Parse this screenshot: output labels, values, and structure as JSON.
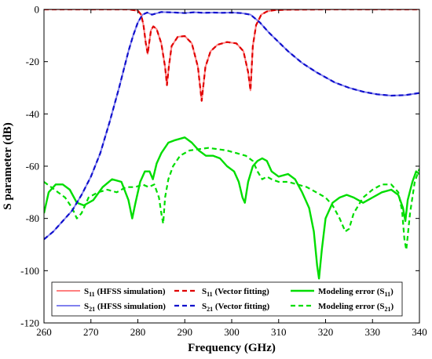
{
  "chart_data": {
    "type": "line",
    "xlabel": "Frequency (GHz)",
    "ylabel": "S parameter (dB)",
    "xlim": [
      260,
      340
    ],
    "ylim": [
      -120,
      0
    ],
    "xticks": [
      260,
      270,
      280,
      290,
      300,
      310,
      320,
      330,
      340
    ],
    "yticks": [
      0,
      -20,
      -40,
      -60,
      -80,
      -100,
      -120
    ],
    "grid": false,
    "legend_position": "bottom-center",
    "series": [
      {
        "key": "s11_hfss",
        "legend_main": "S",
        "legend_sub": "11",
        "legend_tail": " (HFSS simulation)",
        "color": "#ff7f7f",
        "dash": "solid",
        "width": 2,
        "x": [
          260,
          270,
          278,
          280,
          280.7,
          281.2,
          281.7,
          282.1,
          282.4,
          282.8,
          283.3,
          284,
          285,
          285.8,
          286.2,
          286.6,
          287.2,
          288.5,
          290,
          291.5,
          292.8,
          293.6,
          294.4,
          295.5,
          297,
          299,
          301,
          302.5,
          303.5,
          304,
          304.5,
          305.2,
          306.3,
          307.5,
          309,
          312,
          320,
          330,
          340
        ],
        "y": [
          0,
          0,
          0,
          -0.5,
          -2,
          -6,
          -13,
          -17,
          -13,
          -8,
          -6.5,
          -7.5,
          -13,
          -22,
          -29,
          -22,
          -14,
          -10.5,
          -10.2,
          -13,
          -22,
          -35,
          -22,
          -16,
          -13.5,
          -12.5,
          -13,
          -16,
          -24,
          -31,
          -14,
          -6,
          -2,
          -0.8,
          -0.3,
          -0.1,
          0,
          0,
          0
        ]
      },
      {
        "key": "s11_vf",
        "legend_main": "S",
        "legend_sub": "11",
        "legend_tail": " (Vector fitting)",
        "color": "#e00000",
        "dash": "dashed",
        "width": 2.2,
        "x": [
          260,
          270,
          278,
          280,
          280.7,
          281.2,
          281.7,
          282.1,
          282.4,
          282.8,
          283.3,
          284,
          285,
          285.8,
          286.2,
          286.6,
          287.2,
          288.5,
          290,
          291.5,
          292.8,
          293.6,
          294.4,
          295.5,
          297,
          299,
          301,
          302.5,
          303.5,
          304,
          304.5,
          305.2,
          306.3,
          307.5,
          309,
          312,
          320,
          330,
          340
        ],
        "y": [
          0,
          0,
          0,
          -0.5,
          -2,
          -6,
          -13,
          -17,
          -13,
          -8,
          -6.5,
          -7.5,
          -13,
          -22,
          -29,
          -22,
          -14,
          -10.5,
          -10.2,
          -13,
          -22,
          -35,
          -22,
          -16,
          -13.5,
          -12.5,
          -13,
          -16,
          -24,
          -31,
          -14,
          -6,
          -2,
          -0.8,
          -0.3,
          -0.1,
          0,
          0,
          0
        ]
      },
      {
        "key": "s21_hfss",
        "legend_main": "S",
        "legend_sub": "21",
        "legend_tail": " (HFSS simulation)",
        "color": "#8080ee",
        "dash": "solid",
        "width": 2,
        "x": [
          260,
          262,
          264,
          266,
          268,
          270,
          272,
          274,
          276,
          278,
          279,
          280,
          281,
          282,
          283,
          285,
          288,
          290,
          292,
          294,
          296,
          298,
          300,
          302,
          304,
          305,
          306,
          307,
          308,
          310,
          312,
          315,
          318,
          320,
          322,
          325,
          328,
          331,
          334,
          337,
          340
        ],
        "y": [
          -88,
          -85,
          -81,
          -77,
          -71,
          -64,
          -55,
          -43,
          -30,
          -16,
          -10,
          -5,
          -2,
          -1.2,
          -2,
          -1,
          -1.2,
          -1.4,
          -1.1,
          -1.3,
          -1.2,
          -1.3,
          -1.2,
          -1.4,
          -2,
          -3.5,
          -5,
          -7,
          -9,
          -12.5,
          -16,
          -20.5,
          -24,
          -26,
          -28,
          -30,
          -31.5,
          -32.5,
          -33,
          -32.8,
          -32
        ]
      },
      {
        "key": "s21_vf",
        "legend_main": "S",
        "legend_sub": "21",
        "legend_tail": " (Vector fitting)",
        "color": "#1010cc",
        "dash": "dashed",
        "width": 2.2,
        "x": [
          260,
          262,
          264,
          266,
          268,
          270,
          272,
          274,
          276,
          278,
          279,
          280,
          281,
          282,
          283,
          285,
          288,
          290,
          292,
          294,
          296,
          298,
          300,
          302,
          304,
          305,
          306,
          307,
          308,
          310,
          312,
          315,
          318,
          320,
          322,
          325,
          328,
          331,
          334,
          337,
          340
        ],
        "y": [
          -88,
          -85,
          -81,
          -77,
          -71,
          -64,
          -55,
          -43,
          -30,
          -16,
          -10,
          -5,
          -2,
          -1.2,
          -2,
          -1,
          -1.2,
          -1.4,
          -1.1,
          -1.3,
          -1.2,
          -1.3,
          -1.2,
          -1.4,
          -2,
          -3.5,
          -5,
          -7,
          -9,
          -12.5,
          -16,
          -20.5,
          -24,
          -26,
          -28,
          -30,
          -31.5,
          -32.5,
          -33,
          -32.8,
          -32
        ]
      },
      {
        "key": "err_s11",
        "legend_main": "Modeling error (S",
        "legend_sub": "11",
        "legend_tail": ")",
        "color": "#00dd00",
        "dash": "solid",
        "width": 2.4,
        "x": [
          260,
          261,
          262.5,
          264,
          265.5,
          267,
          268.5,
          270.5,
          272.5,
          274.5,
          276.5,
          278,
          278.8,
          279.5,
          280.5,
          281.5,
          282.5,
          283.2,
          284,
          285,
          286.5,
          288,
          290,
          291.5,
          293,
          294.5,
          296,
          297.5,
          299,
          300.5,
          301.5,
          302.3,
          302.8,
          303.5,
          304.5,
          305.5,
          306.5,
          307.5,
          308.5,
          310,
          312,
          313.5,
          315,
          316.5,
          317.5,
          318.2,
          318.6,
          319.2,
          320,
          321.5,
          323,
          324.5,
          326,
          328,
          330,
          332,
          334,
          335.5,
          336.5,
          337,
          337.5,
          338.5,
          339.3,
          340
        ],
        "y": [
          -78,
          -70,
          -67,
          -67,
          -69,
          -74,
          -75,
          -73,
          -68,
          -65,
          -66,
          -73,
          -80,
          -74,
          -66,
          -62,
          -62,
          -65,
          -59,
          -55,
          -51,
          -50,
          -49,
          -51,
          -54,
          -56,
          -56,
          -57,
          -60,
          -62,
          -66,
          -72,
          -74,
          -66,
          -60,
          -58,
          -57,
          -58,
          -62,
          -64,
          -63,
          -65,
          -70,
          -76,
          -85,
          -98,
          -103,
          -92,
          -80,
          -74,
          -72,
          -71,
          -72,
          -74,
          -72,
          -70,
          -69,
          -71,
          -76,
          -81,
          -73,
          -66,
          -62,
          -63
        ]
      },
      {
        "key": "err_s21",
        "legend_main": "Modeling error (S",
        "legend_sub": "21",
        "legend_tail": ")",
        "color": "#00dd00",
        "dash": "dashed",
        "width": 2.2,
        "x": [
          260,
          261.5,
          263,
          264.5,
          266,
          267,
          268,
          269.5,
          271.5,
          273.5,
          275.5,
          277.5,
          279.5,
          281,
          282.3,
          283.5,
          284.5,
          285,
          285.4,
          285.8,
          286.5,
          287.5,
          289,
          291,
          293,
          295,
          297,
          299,
          301,
          303,
          304.5,
          305.5,
          306.5,
          307.5,
          308.5,
          310,
          312,
          314,
          316,
          318,
          320,
          321.5,
          323,
          324.2,
          325,
          326,
          328,
          330,
          332,
          334,
          335.5,
          336.3,
          336.8,
          337.2,
          338,
          339,
          340
        ],
        "y": [
          -66,
          -68,
          -70,
          -72,
          -76,
          -80,
          -78,
          -72,
          -70,
          -69,
          -70,
          -68,
          -68,
          -67,
          -68,
          -67,
          -72,
          -78,
          -82,
          -72,
          -65,
          -60,
          -56,
          -54,
          -53.5,
          -53,
          -53.5,
          -54,
          -55,
          -56,
          -58,
          -62,
          -65,
          -64,
          -65,
          -66,
          -66,
          -67,
          -68,
          -70,
          -72,
          -75,
          -80,
          -85,
          -84,
          -78,
          -72,
          -69,
          -67,
          -67,
          -70,
          -77,
          -88,
          -92,
          -78,
          -66,
          -61
        ]
      }
    ]
  }
}
